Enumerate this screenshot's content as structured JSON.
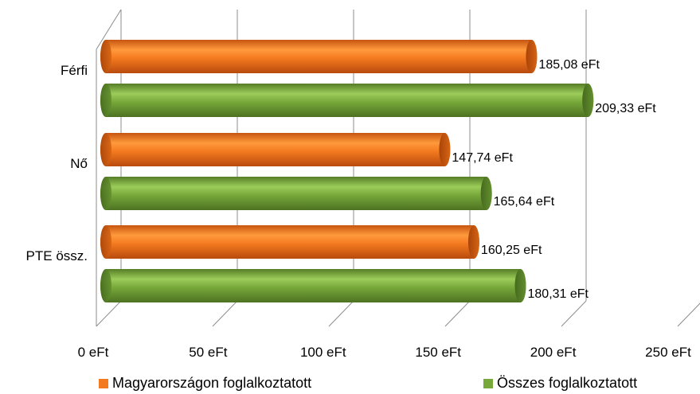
{
  "chart_data": {
    "type": "bar",
    "orientation": "horizontal",
    "style": "3d-cylinder",
    "categories": [
      "Férfi",
      "Nő",
      "PTE össz."
    ],
    "series": [
      {
        "name": "Magyarországon foglalkoztatott",
        "values": [
          185.08,
          147.74,
          160.25
        ],
        "color": "#f47a20",
        "labels": [
          "185,08 eFt",
          "147,74 eFt",
          "160,25 eFt"
        ]
      },
      {
        "name": "Összes foglalkoztatott",
        "values": [
          209.33,
          165.64,
          180.31
        ],
        "color": "#77a83a",
        "labels": [
          "209,33 eFt",
          "165,64 eFt",
          "180,31 eFt"
        ]
      }
    ],
    "xlim": [
      0,
      250
    ],
    "x_ticks": [
      0,
      50,
      100,
      150,
      200,
      250
    ],
    "x_tick_labels": [
      "0 eFt",
      "50 eFt",
      "100 eFt",
      "150 eFt",
      "200 eFt",
      "250 eFt"
    ],
    "grid": true,
    "legend": "bottom",
    "title": "",
    "xlabel": "",
    "ylabel": ""
  },
  "legend": {
    "series1_label": "Magyarországon foglalkoztatott",
    "series2_label": "Összes foglalkoztatott"
  }
}
